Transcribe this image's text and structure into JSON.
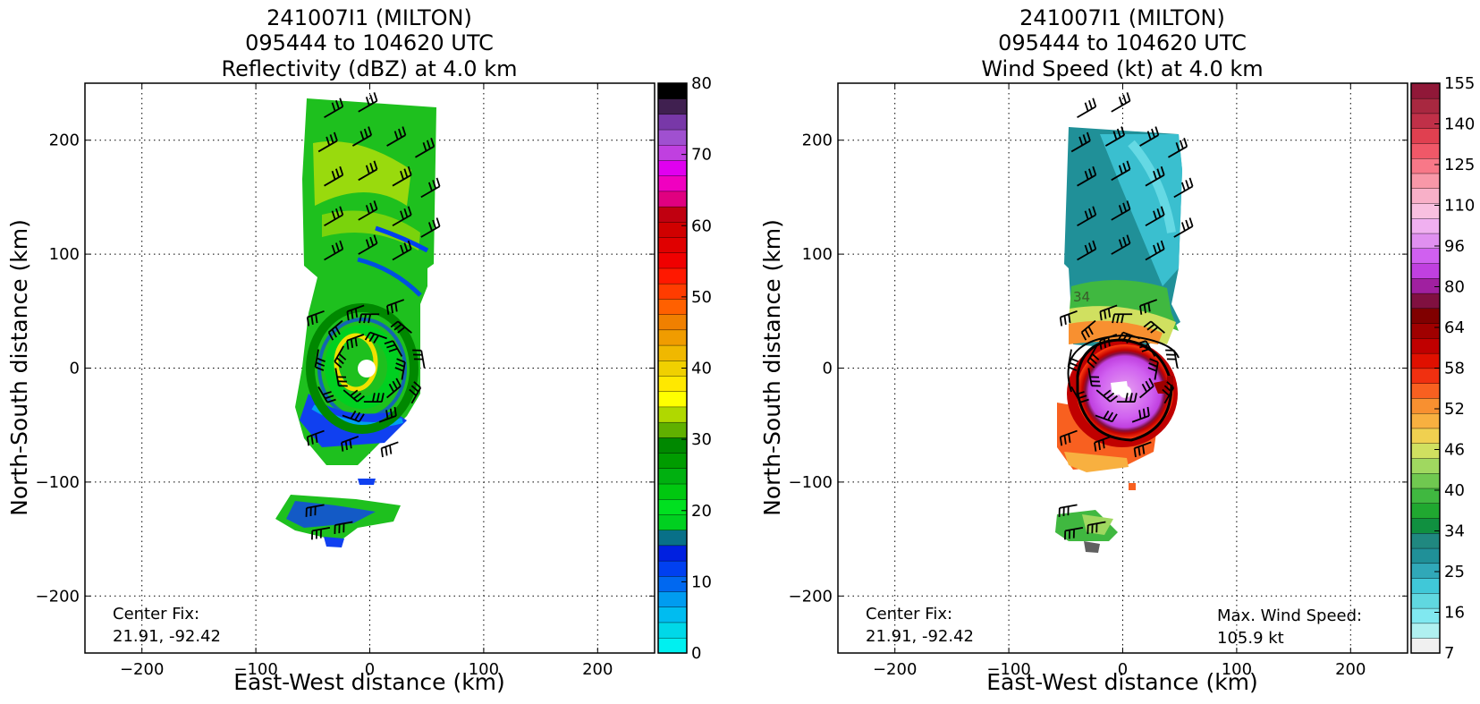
{
  "chart_data": [
    {
      "type": "heatmap",
      "title_lines": [
        "241007I1 (MILTON)",
        "095444 to 104620 UTC",
        "Reflectivity (dBZ) at 4.0 km"
      ],
      "xlabel": "East-West distance (km)",
      "ylabel": "North-South distance (km)",
      "xlim": [
        -250,
        250
      ],
      "ylim": [
        -250,
        250
      ],
      "xticks": [
        -200,
        -100,
        0,
        100,
        200
      ],
      "yticks": [
        -200,
        -100,
        0,
        100,
        200
      ],
      "grid": true,
      "field": "reflectivity",
      "colorbar": {
        "label_values": [
          0,
          10,
          20,
          30,
          40,
          50,
          60,
          70,
          80
        ],
        "tick_labels": [
          "0",
          "10",
          "20",
          "30",
          "40",
          "50",
          "60",
          "70",
          "80"
        ],
        "colors": [
          "#00f0f0",
          "#00d8e8",
          "#00bcf0",
          "#009cf0",
          "#0068f0",
          "#0040f0",
          "#0020e0",
          "#087088",
          "#00d020",
          "#00e020",
          "#00c810",
          "#00b010",
          "#009c00",
          "#008800",
          "#60b000",
          "#b0d800",
          "#ffff00",
          "#ffe800",
          "#f0d000",
          "#f0b800",
          "#f09c00",
          "#f08000",
          "#ff6000",
          "#ff3c00",
          "#ff1800",
          "#f00000",
          "#e00000",
          "#d00000",
          "#c00010",
          "#e00080",
          "#f000c0",
          "#e000f0",
          "#c040e0",
          "#a050d0",
          "#7838a8",
          "#402050",
          "#000000"
        ]
      },
      "annotations": [
        {
          "text_lines": [
            "Center Fix:",
            "21.91, -92.42"
          ],
          "position": "bottom-left"
        }
      ]
    },
    {
      "type": "heatmap",
      "title_lines": [
        "241007I1 (MILTON)",
        "095444 to 104620 UTC",
        "Wind Speed (kt) at 4.0 km"
      ],
      "xlabel": "East-West distance (km)",
      "ylabel": "North-South distance (km)",
      "xlim": [
        -250,
        250
      ],
      "ylim": [
        -250,
        250
      ],
      "xticks": [
        -200,
        -100,
        0,
        100,
        200
      ],
      "yticks": [
        -200,
        -100,
        0,
        100,
        200
      ],
      "grid": true,
      "field": "wind_speed",
      "contour_label": "34",
      "colorbar": {
        "tick_labels": [
          "7",
          "16",
          "25",
          "34",
          "40",
          "46",
          "52",
          "58",
          "64",
          "80",
          "96",
          "110",
          "125",
          "140",
          "155"
        ],
        "colors": [
          "#f0f0f0",
          "#b0f0f0",
          "#80e8f0",
          "#60d8e0",
          "#40c8d8",
          "#30a8b8",
          "#209098",
          "#208880",
          "#109040",
          "#20a830",
          "#40b840",
          "#70c850",
          "#a0d860",
          "#d0e060",
          "#f0d050",
          "#f8b040",
          "#f89030",
          "#f86020",
          "#f03010",
          "#e01000",
          "#c00000",
          "#a00000",
          "#800000",
          "#801040",
          "#a020a0",
          "#c040e0",
          "#d060f0",
          "#e090f0",
          "#f0b0f0",
          "#f8c0e0",
          "#f8b0c8",
          "#f898a8",
          "#f87888",
          "#f05868",
          "#e04050",
          "#c03048",
          "#a82840",
          "#901838"
        ]
      },
      "annotations": [
        {
          "text_lines": [
            "Center Fix:",
            "21.91, -92.42"
          ],
          "position": "bottom-left"
        },
        {
          "text_lines": [
            "Max. Wind Speed:",
            "105.9 kt"
          ],
          "position": "bottom-right"
        }
      ]
    }
  ]
}
